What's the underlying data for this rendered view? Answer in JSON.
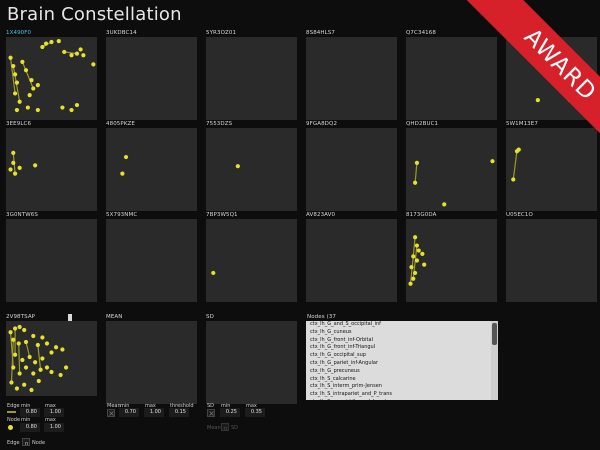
{
  "app": {
    "title": "Brain Constellation"
  },
  "colors": {
    "node": "#e6e22a",
    "edge": "#9a9a2e",
    "highlight_label": "#49c4e0",
    "award": "#d6212b"
  },
  "award_label": "AWARD",
  "subjects": [
    {
      "id": "1X490F0",
      "highlight": true,
      "nodes": [
        [
          0.05,
          0.25
        ],
        [
          0.08,
          0.35
        ],
        [
          0.1,
          0.45
        ],
        [
          0.12,
          0.55
        ],
        [
          0.1,
          0.68
        ],
        [
          0.15,
          0.78
        ],
        [
          0.12,
          0.88
        ],
        [
          0.18,
          0.3
        ],
        [
          0.22,
          0.4
        ],
        [
          0.28,
          0.52
        ],
        [
          0.3,
          0.62
        ],
        [
          0.26,
          0.7
        ],
        [
          0.35,
          0.58
        ],
        [
          0.4,
          0.12
        ],
        [
          0.44,
          0.08
        ],
        [
          0.5,
          0.06
        ],
        [
          0.58,
          0.05
        ],
        [
          0.64,
          0.18
        ],
        [
          0.72,
          0.22
        ],
        [
          0.78,
          0.2
        ],
        [
          0.82,
          0.15
        ],
        [
          0.85,
          0.22
        ],
        [
          0.96,
          0.33
        ],
        [
          0.24,
          0.85
        ],
        [
          0.35,
          0.88
        ],
        [
          0.62,
          0.85
        ],
        [
          0.72,
          0.88
        ],
        [
          0.78,
          0.82
        ]
      ],
      "edges": [
        [
          0,
          4
        ],
        [
          1,
          5
        ],
        [
          7,
          10
        ],
        [
          13,
          15
        ],
        [
          17,
          19
        ]
      ]
    },
    {
      "id": "3UKDBC14",
      "highlight": false,
      "nodes": [],
      "edges": []
    },
    {
      "id": "5YR3OZ01",
      "highlight": false,
      "nodes": [],
      "edges": []
    },
    {
      "id": "8S84HLS7",
      "highlight": false,
      "nodes": [],
      "edges": []
    },
    {
      "id": "Q7C34168",
      "highlight": false,
      "nodes": [],
      "edges": []
    },
    {
      "id": "",
      "highlight": false,
      "nodes": [
        [
          0.35,
          0.76
        ],
        [
          0.7,
          0.76
        ],
        [
          0.78,
          0.74
        ]
      ],
      "edges": []
    },
    {
      "id": "3EE9LC6",
      "highlight": false,
      "nodes": [
        [
          0.08,
          0.3
        ],
        [
          0.08,
          0.42
        ],
        [
          0.05,
          0.5
        ],
        [
          0.15,
          0.48
        ],
        [
          0.1,
          0.55
        ],
        [
          0.32,
          0.45
        ]
      ],
      "edges": [
        [
          0,
          4
        ]
      ]
    },
    {
      "id": "4805PKZE",
      "highlight": false,
      "nodes": [
        [
          0.22,
          0.35
        ],
        [
          0.18,
          0.55
        ]
      ],
      "edges": []
    },
    {
      "id": "7553DZS",
      "highlight": false,
      "nodes": [
        [
          0.35,
          0.46
        ]
      ],
      "edges": []
    },
    {
      "id": "9FGA8DQ2",
      "highlight": false,
      "nodes": [],
      "edges": []
    },
    {
      "id": "QHD2BUC1",
      "highlight": false,
      "nodes": [
        [
          0.12,
          0.42
        ],
        [
          0.1,
          0.66
        ],
        [
          0.95,
          0.4
        ],
        [
          0.42,
          0.92
        ]
      ],
      "edges": [
        [
          0,
          1
        ]
      ]
    },
    {
      "id": "5W1M13E7",
      "highlight": false,
      "nodes": [
        [
          0.12,
          0.28
        ],
        [
          0.14,
          0.26
        ],
        [
          0.08,
          0.62
        ]
      ],
      "edges": [
        [
          0,
          2
        ]
      ]
    },
    {
      "id": "3G0NTW6S",
      "highlight": false,
      "nodes": [],
      "edges": []
    },
    {
      "id": "5X793NMC",
      "highlight": false,
      "nodes": [],
      "edges": []
    },
    {
      "id": "7BP3W5Q1",
      "highlight": false,
      "nodes": [
        [
          0.08,
          0.65
        ]
      ],
      "edges": []
    },
    {
      "id": "AV823AV0",
      "highlight": false,
      "nodes": [],
      "edges": []
    },
    {
      "id": "8173G0DA",
      "highlight": false,
      "nodes": [
        [
          0.1,
          0.22
        ],
        [
          0.12,
          0.32
        ],
        [
          0.14,
          0.38
        ],
        [
          0.08,
          0.45
        ],
        [
          0.12,
          0.5
        ],
        [
          0.06,
          0.58
        ],
        [
          0.1,
          0.65
        ],
        [
          0.08,
          0.72
        ],
        [
          0.05,
          0.78
        ],
        [
          0.18,
          0.42
        ],
        [
          0.2,
          0.55
        ]
      ],
      "edges": [
        [
          0,
          8
        ],
        [
          1,
          7
        ]
      ]
    },
    {
      "id": "U05EC1O",
      "highlight": false,
      "nodes": [],
      "edges": []
    }
  ],
  "selected_subject": {
    "id": "2V98TSAP",
    "nodes": [
      [
        0.05,
        0.15
      ],
      [
        0.1,
        0.1
      ],
      [
        0.15,
        0.08
      ],
      [
        0.2,
        0.12
      ],
      [
        0.08,
        0.25
      ],
      [
        0.14,
        0.3
      ],
      [
        0.22,
        0.28
      ],
      [
        0.3,
        0.2
      ],
      [
        0.35,
        0.32
      ],
      [
        0.4,
        0.22
      ],
      [
        0.45,
        0.3
      ],
      [
        0.5,
        0.42
      ],
      [
        0.55,
        0.35
      ],
      [
        0.62,
        0.38
      ],
      [
        0.1,
        0.45
      ],
      [
        0.18,
        0.52
      ],
      [
        0.26,
        0.48
      ],
      [
        0.32,
        0.55
      ],
      [
        0.4,
        0.5
      ],
      [
        0.08,
        0.62
      ],
      [
        0.15,
        0.7
      ],
      [
        0.22,
        0.62
      ],
      [
        0.3,
        0.7
      ],
      [
        0.38,
        0.65
      ],
      [
        0.45,
        0.62
      ],
      [
        0.06,
        0.82
      ],
      [
        0.12,
        0.9
      ],
      [
        0.2,
        0.85
      ],
      [
        0.28,
        0.92
      ],
      [
        0.36,
        0.8
      ],
      [
        0.5,
        0.68
      ],
      [
        0.6,
        0.72
      ],
      [
        0.66,
        0.62
      ]
    ],
    "edges": [
      [
        0,
        19
      ],
      [
        4,
        25
      ],
      [
        5,
        20
      ],
      [
        8,
        23
      ],
      [
        1,
        14
      ],
      [
        6,
        16
      ]
    ]
  },
  "mean": {
    "label": "MEAN"
  },
  "sd": {
    "label": "SD"
  },
  "nodes_list": {
    "header": "Nodes (37",
    "items": [
      "ctx_lh_G_and_S_occipital_inf",
      "ctx_lh_G_cuneus",
      "ctx_lh_G_front_inf-Orbital",
      "ctx_lh_G_front_inf-Triangul",
      "ctx_lh_G_occipital_sup",
      "ctx_lh_G_pariet_inf-Angular",
      "ctx_lh_G_precuneus",
      "ctx_lh_S_calcarine",
      "ctx_lh_S_interm_prim-Jensen",
      "ctx_lh_S_intrapariet_and_P_trans",
      "ctx_lh_S_oc_middle_and_Lunatus"
    ]
  },
  "controls": {
    "edge_label": "Edge",
    "node_label": "Node",
    "min_label": "min",
    "max_label": "max",
    "edge_min": "0.80",
    "edge_max": "1.00",
    "node_min": "0.80",
    "node_max": "1.00",
    "edge_n_node": [
      "Edge",
      "n",
      "Node"
    ],
    "mean_label": "Mean",
    "mean_min": "0.70",
    "mean_max": "1.00",
    "threshold_label": "threshold",
    "threshold": "0.15",
    "sd_label": "SD",
    "sd_min": "0.25",
    "sd_max": "0.35",
    "mean_sd": [
      "Mean",
      "n",
      "SD"
    ]
  }
}
